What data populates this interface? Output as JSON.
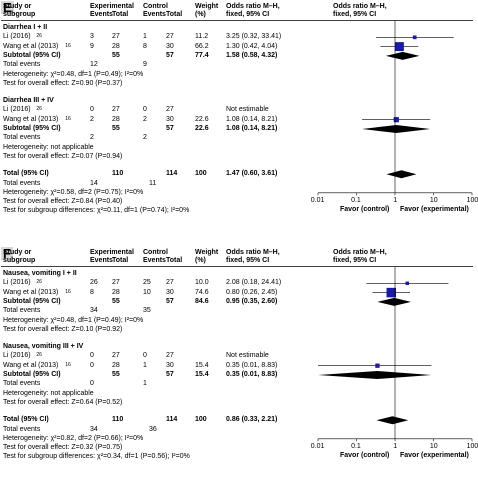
{
  "headers": {
    "col1a": "Study or",
    "col1b": "subgroup",
    "exp": "Experimental",
    "ctl": "Control",
    "events": "Events",
    "total": "Total",
    "weight": "Weight",
    "weight_unit": "(%)",
    "or_a": "Odds ratio M–H,",
    "or_b": "fixed, 95% CI"
  },
  "axis": {
    "ticks": [
      "0.01",
      "0.1",
      "1",
      "10",
      "100"
    ],
    "favor_left": "Favor (control)",
    "favor_right": "Favor (experimental)"
  },
  "chart_data": [
    {
      "type": "forest",
      "panel": "E",
      "xscale": "log",
      "xlim": [
        0.01,
        100
      ],
      "subgroups": [
        {
          "title": "Diarrhea I + II",
          "studies": [
            {
              "name": "Li (2016)",
              "ref": "26",
              "exp_events": "3",
              "exp_total": "27",
              "ctl_events": "1",
              "ctl_total": "27",
              "weight": "11.2",
              "or_text": "3.25 (0.32, 33.41)",
              "or": 3.25,
              "lo": 0.32,
              "hi": 33.41
            },
            {
              "name": "Wang et al (2013)",
              "ref": "16",
              "exp_events": "9",
              "exp_total": "28",
              "ctl_events": "8",
              "ctl_total": "30",
              "weight": "66.2",
              "or_text": "1.30 (0.42, 4.04)",
              "or": 1.3,
              "lo": 0.42,
              "hi": 4.04
            }
          ],
          "subtotal": {
            "label": "Subtotal (95% CI)",
            "exp_total": "55",
            "ctl_total": "57",
            "weight": "77.4",
            "or_text": "1.58 (0.58, 4.32)",
            "or": 1.58,
            "lo": 0.58,
            "hi": 4.32
          },
          "total_events": {
            "label": "Total events",
            "exp": "12",
            "ctl": "9"
          },
          "heterogeneity": "Heterogeneity: χ²=0.48, df=1 (P=0.49); I²=0%",
          "overall": "Test for overall effect: Z=0.90 (P=0.37)"
        },
        {
          "title": "Diarrhea III + IV",
          "studies": [
            {
              "name": "Li (2016)",
              "ref": "26",
              "exp_events": "0",
              "exp_total": "27",
              "ctl_events": "0",
              "ctl_total": "27",
              "weight": "",
              "or_text": "Not estimable",
              "or": null,
              "lo": null,
              "hi": null
            },
            {
              "name": "Wang et al (2013)",
              "ref": "16",
              "exp_events": "2",
              "exp_total": "28",
              "ctl_events": "2",
              "ctl_total": "30",
              "weight": "22.6",
              "or_text": "1.08 (0.14, 8.21)",
              "or": 1.08,
              "lo": 0.14,
              "hi": 8.21
            }
          ],
          "subtotal": {
            "label": "Subtotal (95% CI)",
            "exp_total": "55",
            "ctl_total": "57",
            "weight": "22.6",
            "or_text": "1.08 (0.14, 8.21)",
            "or": 1.08,
            "lo": 0.14,
            "hi": 8.21
          },
          "total_events": {
            "label": "Total events",
            "exp": "2",
            "ctl": "2"
          },
          "heterogeneity": "Heterogeneity: not applicable",
          "overall": "Test for overall effect: Z=0.07 (P=0.94)"
        }
      ],
      "total": {
        "label": "Total (95% CI)",
        "exp_total": "110",
        "ctl_total": "114",
        "weight": "100",
        "or_text": "1.47 (0.60, 3.61)",
        "or": 1.47,
        "lo": 0.6,
        "hi": 3.61
      },
      "total_events": {
        "label": "Total events",
        "exp": "14",
        "ctl": "11"
      },
      "footer": [
        "Heterogeneity: χ²=0.58, df=2 (P=0.75); I²=0%",
        "Test for overall effect: Z=0.84 (P=0.40)",
        "Test for subgroup differences: χ²=0.11, df=1 (P=0.74); I²=0%"
      ]
    },
    {
      "type": "forest",
      "panel": "F",
      "xscale": "log",
      "xlim": [
        0.01,
        100
      ],
      "subgroups": [
        {
          "title": "Nausea, vomiting I + II",
          "studies": [
            {
              "name": "Li (2016)",
              "ref": "26",
              "exp_events": "26",
              "exp_total": "27",
              "ctl_events": "25",
              "ctl_total": "27",
              "weight": "10.0",
              "or_text": "2.08 (0.18, 24.41)",
              "or": 2.08,
              "lo": 0.18,
              "hi": 24.41
            },
            {
              "name": "Wang et al (2013)",
              "ref": "16",
              "exp_events": "8",
              "exp_total": "28",
              "ctl_events": "10",
              "ctl_total": "30",
              "weight": "74.6",
              "or_text": "0.80 (0.26, 2.45)",
              "or": 0.8,
              "lo": 0.26,
              "hi": 2.45
            }
          ],
          "subtotal": {
            "label": "Subtotal (95% CI)",
            "exp_total": "55",
            "ctl_total": "57",
            "weight": "84.6",
            "or_text": "0.95 (0.35, 2.60)",
            "or": 0.95,
            "lo": 0.35,
            "hi": 2.6
          },
          "total_events": {
            "label": "Total events",
            "exp": "34",
            "ctl": "35"
          },
          "heterogeneity": "Heterogeneity: χ²=0.48, df=1 (P=0.49); I²=0%",
          "overall": "Test for overall effect: Z=0.10 (P=0.92)"
        },
        {
          "title": "Nausea, vomiting III + IV",
          "studies": [
            {
              "name": "Li (2016)",
              "ref": "26",
              "exp_events": "0",
              "exp_total": "27",
              "ctl_events": "0",
              "ctl_total": "27",
              "weight": "",
              "or_text": "Not estimable",
              "or": null,
              "lo": null,
              "hi": null
            },
            {
              "name": "Wang et al (2013)",
              "ref": "16",
              "exp_events": "0",
              "exp_total": "28",
              "ctl_events": "1",
              "ctl_total": "30",
              "weight": "15.4",
              "or_text": "0.35 (0.01, 8.83)",
              "or": 0.35,
              "lo": 0.01,
              "hi": 8.83
            }
          ],
          "subtotal": {
            "label": "Subtotal (95% CI)",
            "exp_total": "55",
            "ctl_total": "57",
            "weight": "15.4",
            "or_text": "0.35 (0.01, 8.83)",
            "or": 0.35,
            "lo": 0.01,
            "hi": 8.83
          },
          "total_events": {
            "label": "Total events",
            "exp": "0",
            "ctl": "1"
          },
          "heterogeneity": "Heterogeneity: not applicable",
          "overall": "Test for overall effect: Z=0.64 (P=0.52)"
        }
      ],
      "total": {
        "label": "Total (95% CI)",
        "exp_total": "110",
        "ctl_total": "114",
        "weight": "100",
        "or_text": "0.86 (0.33, 2.21)",
        "or": 0.86,
        "lo": 0.33,
        "hi": 2.21
      },
      "total_events": {
        "label": "Total events",
        "exp": "34",
        "ctl": "36"
      },
      "footer": [
        "Heterogeneity: χ²=0.82, df=2 (P=0.66); I²=0%",
        "Test for overall effect: Z=0.32 (P=0.75)",
        "Test for subgroup differences: χ²=0.34, df=1 (P=0.56); I²=0%"
      ]
    }
  ],
  "colors": {
    "marker": "#1a1aa8",
    "diamond": "#000000",
    "text": "#000000",
    "label_bg": "#d8d8d8"
  }
}
